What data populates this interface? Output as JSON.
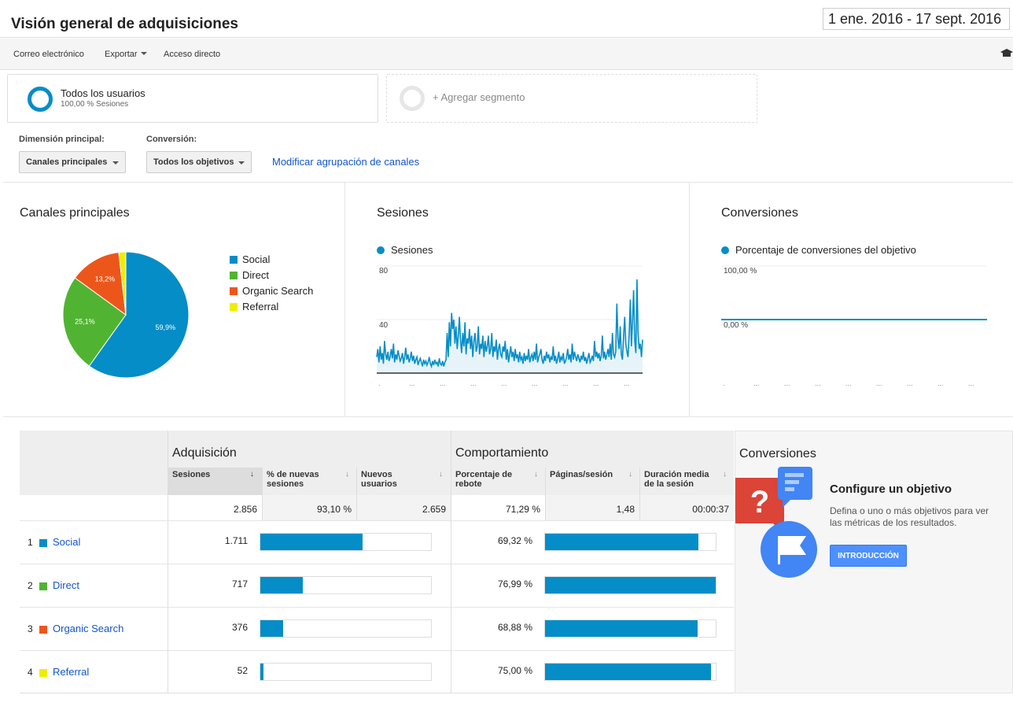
{
  "header": {
    "title": "Visión general de adquisiciones",
    "date_range": "1 ene. 2016 - 17 sept. 2016"
  },
  "toolbar": {
    "email": "Correo electrónico",
    "export": "Exportar",
    "shortcut": "Acceso directo",
    "icon": "graduation-cap-icon"
  },
  "segments": {
    "active_name": "Todos los usuarios",
    "active_sub": "100,00 % Sesiones",
    "add_label": "+ Agregar segmento"
  },
  "controls": {
    "dimension_label": "Dimensión principal:",
    "dimension_value": "Canales principales",
    "conversion_label": "Conversión:",
    "conversion_value": "Todos los objetivos",
    "modify_link": "Modificar agrupación de canales"
  },
  "panels": {
    "channels_title": "Canales principales",
    "sessions_title": "Sesiones",
    "sessions_legend": "Sesiones",
    "sessions_y_top": "80",
    "sessions_y_mid": "40",
    "conversions_title": "Conversiones",
    "conversions_legend": "Porcentaje de conversiones del objetivo",
    "conversions_y_top": "100,00 %",
    "conversions_y_zero": "0,00 %"
  },
  "chart_data": [
    {
      "type": "pie",
      "title": "Canales principales",
      "categories": [
        "Social",
        "Direct",
        "Organic Search",
        "Referral"
      ],
      "values": [
        59.9,
        25.1,
        13.2,
        1.8
      ],
      "labels": [
        "59,9%",
        "25,1%",
        "13,2%",
        ""
      ],
      "colors": [
        "#058dc7",
        "#50b432",
        "#ed561b",
        "#edef00"
      ],
      "legend": "right"
    },
    {
      "type": "area",
      "title": "Sesiones",
      "series": [
        {
          "name": "Sesiones",
          "values": [
            12,
            18,
            8,
            20,
            10,
            15,
            7,
            24,
            14,
            10,
            16,
            9,
            12,
            18,
            11,
            22,
            8,
            14,
            10,
            17,
            13,
            9,
            11,
            15,
            7,
            12,
            19,
            10,
            14,
            8,
            11,
            16,
            9,
            13,
            7,
            10,
            12,
            6,
            9,
            11,
            8,
            5,
            10,
            7,
            9,
            6,
            8,
            12,
            7,
            5,
            9,
            6,
            10,
            7,
            8,
            5,
            11,
            7,
            6,
            9,
            5,
            8,
            10,
            30,
            12,
            38,
            20,
            45,
            33,
            40,
            22,
            35,
            18,
            28,
            42,
            25,
            15,
            30,
            20,
            38,
            14,
            26,
            22,
            33,
            18,
            28,
            12,
            24,
            30,
            16,
            20,
            35,
            14,
            22,
            18,
            28,
            12,
            24,
            16,
            20,
            28,
            14,
            18,
            30,
            12,
            20,
            16,
            25,
            10,
            18,
            22,
            14,
            12,
            20,
            16,
            24,
            10,
            18,
            8,
            14,
            20,
            12,
            16,
            9,
            18,
            11,
            14,
            8,
            16,
            10,
            12,
            7,
            15,
            9,
            13,
            10,
            18,
            8,
            12,
            14,
            9,
            16,
            10,
            22,
            8,
            12,
            14,
            18,
            10,
            7,
            13,
            9,
            16,
            11,
            14,
            8,
            12,
            10,
            20,
            9,
            13,
            7,
            11,
            16,
            8,
            12,
            10,
            15,
            7,
            9,
            12,
            18,
            10,
            14,
            8,
            22,
            10,
            16,
            12,
            9,
            14,
            11,
            8,
            13,
            10,
            16,
            9,
            12,
            7,
            11,
            15,
            8,
            10,
            13,
            9,
            24,
            12,
            16,
            11,
            15,
            9,
            13,
            28,
            11,
            16,
            10,
            14,
            18,
            12,
            22,
            10,
            30,
            14,
            12,
            16,
            52,
            25,
            18,
            35,
            14,
            10,
            28,
            42,
            22,
            16,
            12,
            30,
            55,
            20,
            38,
            62,
            24,
            15,
            70,
            30,
            18,
            22,
            12,
            25
          ]
        }
      ],
      "ylim": [
        0,
        80
      ],
      "yticks": [
        "40",
        "80"
      ],
      "color": "#058dc7"
    },
    {
      "type": "line",
      "title": "Conversiones",
      "series": [
        {
          "name": "Porcentaje de conversiones del objetivo",
          "values": [
            0,
            0
          ]
        }
      ],
      "ylim": [
        0,
        100
      ],
      "yticks": [
        "0,00 %",
        "100,00 %"
      ],
      "color": "#058dc7"
    }
  ],
  "table": {
    "group_acquisition": "Adquisición",
    "group_behavior": "Comportamiento",
    "group_conversions": "Conversiones",
    "columns": [
      "Sesiones",
      "% de nuevas sesiones",
      "Nuevos usuarios",
      "Porcentaje de rebote",
      "Páginas/sesión",
      "Duración media de la sesión"
    ],
    "totals": [
      "2.856",
      "93,10 %",
      "2.659",
      "71,29 %",
      "1,48",
      "00:00:37"
    ],
    "rows": [
      {
        "rank": "1",
        "channel": "Social",
        "color": "#058dc7",
        "sessions": "1.711",
        "sessions_share": 0.599,
        "bounce": "69,32 %",
        "bounce_rate": 0.6932
      },
      {
        "rank": "2",
        "channel": "Direct",
        "color": "#50b432",
        "sessions": "717",
        "sessions_share": 0.251,
        "bounce": "76,99 %",
        "bounce_rate": 0.7699
      },
      {
        "rank": "3",
        "channel": "Organic Search",
        "color": "#ed561b",
        "sessions": "376",
        "sessions_share": 0.132,
        "bounce": "68,88 %",
        "bounce_rate": 0.6888
      },
      {
        "rank": "4",
        "channel": "Referral",
        "color": "#edef00",
        "sessions": "52",
        "sessions_share": 0.018,
        "bounce": "75,00 %",
        "bounce_rate": 0.75
      }
    ]
  },
  "conversion_promo": {
    "heading": "Configure un objetivo",
    "description": "Defina o uno o más objetivos para ver las métricas de los resultados.",
    "button": "INTRODUCCIÓN"
  }
}
